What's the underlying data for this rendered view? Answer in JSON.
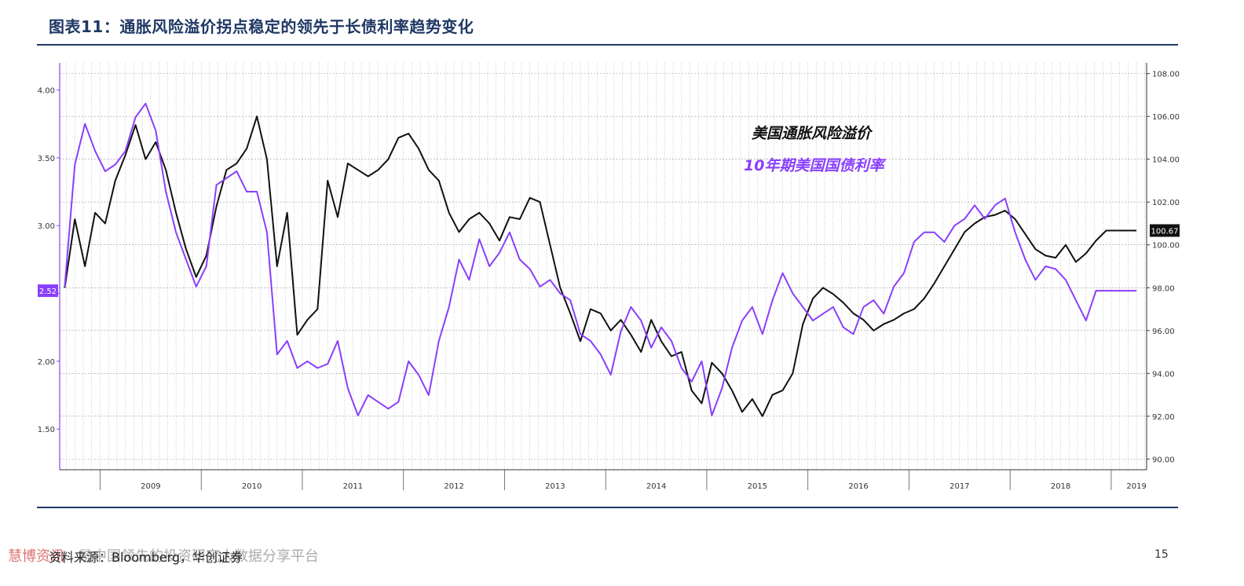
{
  "header": {
    "title": "图表11：通胀风险溢价拐点稳定的领先于长债利率趋势变化"
  },
  "footer": {
    "source": "资料来源：Bloomberg，华创证券",
    "watermark": "慧博资讯",
    "watermark_tail": "是中国领先的投资研究大数据分享平台",
    "page_number": "15"
  },
  "colors": {
    "breakeven": "#111111",
    "treasury": "#8a3ffc",
    "title": "#1f3864",
    "grid": "#9a9a9a"
  },
  "chart_data": {
    "type": "line",
    "title": "",
    "xlabel": "",
    "x_ticks": [
      "2009",
      "2010",
      "2011",
      "2012",
      "2013",
      "2014",
      "2015",
      "2016",
      "2017",
      "2018",
      "2019"
    ],
    "x_range": [
      2008.6,
      2019.35
    ],
    "left_axis": {
      "ticks": [
        "1.50",
        "2.00",
        "2.50",
        "3.00",
        "3.50",
        "4.00"
      ],
      "range": [
        1.2,
        4.2
      ]
    },
    "right_axis": {
      "ticks": [
        "90.00",
        "92.00",
        "94.00",
        "96.00",
        "98.00",
        "100.00",
        "102.00",
        "104.00",
        "106.00",
        "108.00"
      ],
      "range": [
        89.5,
        108.5
      ]
    },
    "legend": [
      "美国通胀风险溢价",
      "10年期美国国债利率"
    ],
    "last_value_labels": {
      "treasury": "2.52",
      "breakeven": "100.67"
    },
    "grid": true,
    "series": [
      {
        "name": "美国通胀风险溢价",
        "axis": "right",
        "x": [
          2008.65,
          2008.75,
          2008.85,
          2008.95,
          2009.05,
          2009.15,
          2009.25,
          2009.35,
          2009.45,
          2009.55,
          2009.65,
          2009.75,
          2009.85,
          2009.95,
          2010.05,
          2010.15,
          2010.25,
          2010.35,
          2010.45,
          2010.55,
          2010.65,
          2010.75,
          2010.85,
          2010.95,
          2011.05,
          2011.15,
          2011.25,
          2011.35,
          2011.45,
          2011.55,
          2011.65,
          2011.75,
          2011.85,
          2011.95,
          2012.05,
          2012.15,
          2012.25,
          2012.35,
          2012.45,
          2012.55,
          2012.65,
          2012.75,
          2012.85,
          2012.95,
          2013.05,
          2013.15,
          2013.25,
          2013.35,
          2013.45,
          2013.55,
          2013.65,
          2013.75,
          2013.85,
          2013.95,
          2014.05,
          2014.15,
          2014.25,
          2014.35,
          2014.45,
          2014.55,
          2014.65,
          2014.75,
          2014.85,
          2014.95,
          2015.05,
          2015.15,
          2015.25,
          2015.35,
          2015.45,
          2015.55,
          2015.65,
          2015.75,
          2015.85,
          2015.95,
          2016.05,
          2016.15,
          2016.25,
          2016.35,
          2016.45,
          2016.55,
          2016.65,
          2016.75,
          2016.85,
          2016.95,
          2017.05,
          2017.15,
          2017.25,
          2017.35,
          2017.45,
          2017.55,
          2017.65,
          2017.75,
          2017.85,
          2017.95,
          2018.05,
          2018.15,
          2018.25,
          2018.35,
          2018.45,
          2018.55,
          2018.65,
          2018.75,
          2018.85,
          2018.95,
          2019.05,
          2019.15,
          2019.25
        ],
        "values": [
          98.0,
          101.2,
          99.0,
          101.5,
          101.0,
          103.0,
          104.2,
          105.6,
          104.0,
          104.8,
          103.5,
          101.5,
          99.8,
          98.5,
          99.5,
          101.8,
          103.5,
          103.8,
          104.5,
          106.0,
          104.0,
          99.0,
          101.5,
          95.8,
          96.5,
          97.0,
          103.0,
          101.3,
          103.8,
          103.5,
          103.2,
          103.5,
          104.0,
          105.0,
          105.2,
          104.5,
          103.5,
          103.0,
          101.5,
          100.6,
          101.2,
          101.5,
          101.0,
          100.2,
          101.3,
          101.2,
          102.2,
          102.0,
          100.0,
          98.0,
          96.8,
          95.5,
          97.0,
          96.8,
          96.0,
          96.5,
          95.8,
          95.0,
          96.5,
          95.5,
          94.8,
          95.0,
          93.2,
          92.6,
          94.5,
          94.0,
          93.2,
          92.2,
          92.8,
          92.0,
          93.0,
          93.2,
          94.0,
          96.3,
          97.5,
          98.0,
          97.7,
          97.3,
          96.8,
          96.5,
          96.0,
          96.3,
          96.5,
          96.8,
          97.0,
          97.5,
          98.2,
          99.0,
          99.8,
          100.6,
          101.0,
          101.3,
          101.4,
          101.6,
          101.2,
          100.5,
          99.8,
          99.5,
          99.4,
          100.0,
          99.2,
          99.6,
          100.2,
          100.67,
          100.67,
          100.67,
          100.67
        ]
      },
      {
        "name": "10年期美国国债利率",
        "axis": "left",
        "x": [
          2008.65,
          2008.75,
          2008.85,
          2008.95,
          2009.05,
          2009.15,
          2009.25,
          2009.35,
          2009.45,
          2009.55,
          2009.65,
          2009.75,
          2009.85,
          2009.95,
          2010.05,
          2010.15,
          2010.25,
          2010.35,
          2010.45,
          2010.55,
          2010.65,
          2010.75,
          2010.85,
          2010.95,
          2011.05,
          2011.15,
          2011.25,
          2011.35,
          2011.45,
          2011.55,
          2011.65,
          2011.75,
          2011.85,
          2011.95,
          2012.05,
          2012.15,
          2012.25,
          2012.35,
          2012.45,
          2012.55,
          2012.65,
          2012.75,
          2012.85,
          2012.95,
          2013.05,
          2013.15,
          2013.25,
          2013.35,
          2013.45,
          2013.55,
          2013.65,
          2013.75,
          2013.85,
          2013.95,
          2014.05,
          2014.15,
          2014.25,
          2014.35,
          2014.45,
          2014.55,
          2014.65,
          2014.75,
          2014.85,
          2014.95,
          2015.05,
          2015.15,
          2015.25,
          2015.35,
          2015.45,
          2015.55,
          2015.65,
          2015.75,
          2015.85,
          2015.95,
          2016.05,
          2016.15,
          2016.25,
          2016.35,
          2016.45,
          2016.55,
          2016.65,
          2016.75,
          2016.85,
          2016.95,
          2017.05,
          2017.15,
          2017.25,
          2017.35,
          2017.45,
          2017.55,
          2017.65,
          2017.75,
          2017.85,
          2017.95,
          2018.05,
          2018.15,
          2018.25,
          2018.35,
          2018.45,
          2018.55,
          2018.65,
          2018.75,
          2018.85,
          2018.95,
          2019.05,
          2019.15,
          2019.25
        ],
        "values": [
          2.55,
          3.45,
          3.75,
          3.55,
          3.4,
          3.45,
          3.55,
          3.8,
          3.9,
          3.7,
          3.25,
          2.95,
          2.75,
          2.55,
          2.7,
          3.3,
          3.35,
          3.4,
          3.25,
          3.25,
          2.95,
          2.05,
          2.15,
          1.95,
          2.0,
          1.95,
          1.98,
          2.15,
          1.8,
          1.6,
          1.75,
          1.7,
          1.65,
          1.7,
          2.0,
          1.9,
          1.75,
          2.15,
          2.4,
          2.75,
          2.6,
          2.9,
          2.7,
          2.8,
          2.95,
          2.75,
          2.68,
          2.55,
          2.6,
          2.5,
          2.45,
          2.2,
          2.15,
          2.05,
          1.9,
          2.22,
          2.4,
          2.3,
          2.1,
          2.25,
          2.15,
          1.95,
          1.85,
          2.0,
          1.6,
          1.8,
          2.1,
          2.3,
          2.4,
          2.2,
          2.45,
          2.65,
          2.5,
          2.4,
          2.3,
          2.35,
          2.4,
          2.25,
          2.2,
          2.4,
          2.45,
          2.35,
          2.55,
          2.65,
          2.88,
          2.95,
          2.95,
          2.88,
          3.0,
          3.05,
          3.15,
          3.05,
          3.15,
          3.2,
          2.95,
          2.75,
          2.6,
          2.7,
          2.68,
          2.6,
          2.45,
          2.3,
          2.52,
          2.52,
          2.52,
          2.52,
          2.52
        ]
      }
    ]
  }
}
